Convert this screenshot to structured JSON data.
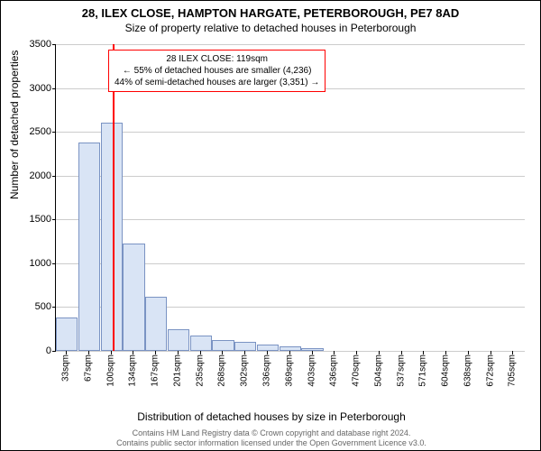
{
  "title": "28, ILEX CLOSE, HAMPTON HARGATE, PETERBOROUGH, PE7 8AD",
  "subtitle": "Size of property relative to detached houses in Peterborough",
  "chart": {
    "type": "bar",
    "xlabel": "Distribution of detached houses by size in Peterborough",
    "ylabel": "Number of detached properties",
    "ylim": [
      0,
      3500
    ],
    "ytick_step": 500,
    "yticks": [
      0,
      500,
      1000,
      1500,
      2000,
      2500,
      3000,
      3500
    ],
    "xticks": [
      "33sqm",
      "67sqm",
      "100sqm",
      "134sqm",
      "167sqm",
      "201sqm",
      "235sqm",
      "268sqm",
      "302sqm",
      "336sqm",
      "369sqm",
      "403sqm",
      "436sqm",
      "470sqm",
      "504sqm",
      "537sqm",
      "571sqm",
      "604sqm",
      "638sqm",
      "672sqm",
      "705sqm"
    ],
    "values": [
      380,
      2380,
      2600,
      1230,
      620,
      250,
      180,
      120,
      100,
      70,
      50,
      30,
      0,
      0,
      0,
      0,
      0,
      0,
      0,
      0,
      0
    ],
    "bar_fill": "#d9e4f5",
    "bar_border": "#7a93c3",
    "grid_color": "#cccccc",
    "background": "#ffffff",
    "marker": {
      "position_index": 2.55,
      "color": "#ff0000"
    },
    "annotation": {
      "line1": "28 ILEX CLOSE: 119sqm",
      "line2": "← 55% of detached houses are smaller (4,236)",
      "line3": "44% of semi-detached houses are larger (3,351) →",
      "border_color": "#ff0000"
    }
  },
  "footer": {
    "line1": "Contains HM Land Registry data © Crown copyright and database right 2024.",
    "line2": "Contains public sector information licensed under the Open Government Licence v3.0."
  }
}
